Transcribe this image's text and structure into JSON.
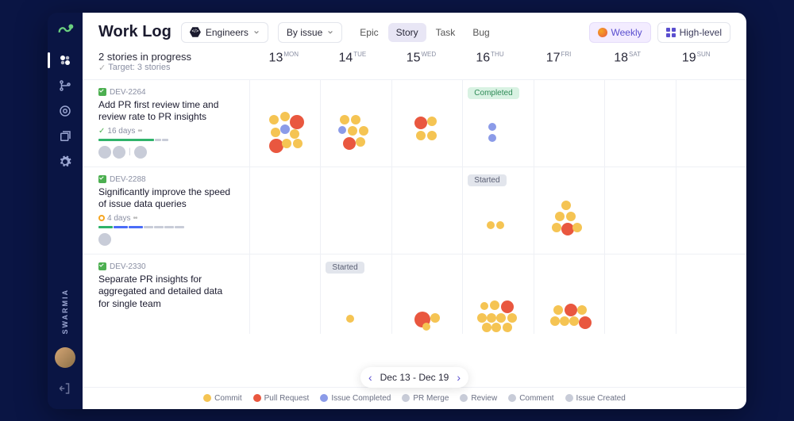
{
  "brand": "SWARMIA",
  "page_title": "Work Log",
  "team_dropdown": {
    "label": "Engineers"
  },
  "group_dropdown": {
    "label": "By issue"
  },
  "issue_tabs": [
    {
      "label": "Epic",
      "active": false
    },
    {
      "label": "Story",
      "active": true
    },
    {
      "label": "Task",
      "active": false
    },
    {
      "label": "Bug",
      "active": false
    }
  ],
  "view_chips": {
    "weekly": "Weekly",
    "highlevel": "High-level"
  },
  "progress": {
    "title": "2 stories in progress",
    "target": "Target: 3 stories"
  },
  "days": [
    {
      "num": "13",
      "name": "MON"
    },
    {
      "num": "14",
      "name": "TUE"
    },
    {
      "num": "15",
      "name": "WED"
    },
    {
      "num": "16",
      "name": "THU"
    },
    {
      "num": "17",
      "name": "FRI"
    },
    {
      "num": "18",
      "name": "SAT"
    },
    {
      "num": "19",
      "name": "SUN"
    }
  ],
  "range_label": "Dec 13 - Dec 19",
  "colors": {
    "commit": "#f5c453",
    "pull_request": "#e9573f",
    "issue_completed": "#8b9be8",
    "muted": "#c8ccd8",
    "badge_completed_bg": "#d9f2e3",
    "badge_completed_fg": "#2e8b57",
    "badge_started_bg": "#e2e5ec",
    "badge_started_fg": "#5a5f73"
  },
  "legend": [
    {
      "label": "Commit",
      "color": "#f5c453"
    },
    {
      "label": "Pull Request",
      "color": "#e9573f"
    },
    {
      "label": "Issue Completed",
      "color": "#8b9be8"
    },
    {
      "label": "PR Merge",
      "color": "#c8ccd8"
    },
    {
      "label": "Review",
      "color": "#c8ccd8"
    },
    {
      "label": "Comment",
      "color": "#c8ccd8"
    },
    {
      "label": "Issue Created",
      "color": "#c8ccd8"
    }
  ],
  "rows": [
    {
      "id": "DEV-2264",
      "title": "Add PR first review time and review rate to PR insights",
      "days_text": "16 days",
      "status_icon": "check",
      "avatars": 2,
      "extra_avatars": 1,
      "progress_segments": [
        {
          "w": 70,
          "c": "#2fb36a"
        },
        {
          "w": 8,
          "c": "#c8ccd8"
        },
        {
          "w": 8,
          "c": "#c8ccd8"
        }
      ],
      "cells": [
        {
          "badge": null,
          "dots": [
            {
              "x": 20,
              "y": 20,
              "r": 6,
              "c": "#f5c453"
            },
            {
              "x": 34,
              "y": 16,
              "r": 6,
              "c": "#f5c453"
            },
            {
              "x": 46,
              "y": 20,
              "r": 9,
              "c": "#e9573f"
            },
            {
              "x": 22,
              "y": 36,
              "r": 6,
              "c": "#f5c453"
            },
            {
              "x": 34,
              "y": 32,
              "r": 6,
              "c": "#8b9be8"
            },
            {
              "x": 46,
              "y": 38,
              "r": 6,
              "c": "#f5c453"
            },
            {
              "x": 20,
              "y": 50,
              "r": 9,
              "c": "#e9573f"
            },
            {
              "x": 36,
              "y": 50,
              "r": 6,
              "c": "#f5c453"
            },
            {
              "x": 50,
              "y": 50,
              "r": 6,
              "c": "#f5c453"
            }
          ]
        },
        {
          "badge": null,
          "dots": [
            {
              "x": 20,
              "y": 20,
              "r": 6,
              "c": "#f5c453"
            },
            {
              "x": 34,
              "y": 20,
              "r": 6,
              "c": "#f5c453"
            },
            {
              "x": 18,
              "y": 34,
              "r": 5,
              "c": "#8b9be8"
            },
            {
              "x": 30,
              "y": 34,
              "r": 6,
              "c": "#f5c453"
            },
            {
              "x": 44,
              "y": 34,
              "r": 6,
              "c": "#f5c453"
            },
            {
              "x": 24,
              "y": 48,
              "r": 8,
              "c": "#e9573f"
            },
            {
              "x": 40,
              "y": 48,
              "r": 6,
              "c": "#f5c453"
            }
          ]
        },
        {
          "badge": null,
          "dots": [
            {
              "x": 24,
              "y": 22,
              "r": 8,
              "c": "#e9573f"
            },
            {
              "x": 40,
              "y": 22,
              "r": 6,
              "c": "#f5c453"
            },
            {
              "x": 26,
              "y": 40,
              "r": 6,
              "c": "#f5c453"
            },
            {
              "x": 40,
              "y": 40,
              "r": 6,
              "c": "#f5c453"
            }
          ]
        },
        {
          "badge": "Completed",
          "badge_class": "completed",
          "dots": [
            {
              "x": 28,
              "y": 30,
              "r": 5,
              "c": "#8b9be8"
            },
            {
              "x": 28,
              "y": 44,
              "r": 5,
              "c": "#8b9be8"
            }
          ]
        },
        {
          "badge": null,
          "dots": []
        },
        {
          "badge": null,
          "dots": []
        },
        {
          "badge": null,
          "dots": []
        }
      ]
    },
    {
      "id": "DEV-2288",
      "title": "Significantly improve the speed of issue data queries",
      "days_text": "4 days",
      "status_icon": "pending",
      "avatars": 1,
      "extra_avatars": 0,
      "progress_segments": [
        {
          "w": 18,
          "c": "#2fb36a"
        },
        {
          "w": 18,
          "c": "#4a6cf7"
        },
        {
          "w": 18,
          "c": "#4a6cf7"
        },
        {
          "w": 12,
          "c": "#c8ccd8"
        },
        {
          "w": 12,
          "c": "#c8ccd8"
        },
        {
          "w": 12,
          "c": "#c8ccd8"
        },
        {
          "w": 12,
          "c": "#c8ccd8"
        }
      ],
      "cells": [
        {
          "badge": null,
          "dots": []
        },
        {
          "badge": null,
          "dots": []
        },
        {
          "badge": null,
          "dots": []
        },
        {
          "badge": "Started",
          "badge_class": "started",
          "dots": [
            {
              "x": 26,
              "y": 44,
              "r": 5,
              "c": "#f5c453"
            },
            {
              "x": 38,
              "y": 44,
              "r": 5,
              "c": "#f5c453"
            }
          ]
        },
        {
          "badge": null,
          "dots": [
            {
              "x": 30,
              "y": 18,
              "r": 6,
              "c": "#f5c453"
            },
            {
              "x": 22,
              "y": 32,
              "r": 6,
              "c": "#f5c453"
            },
            {
              "x": 36,
              "y": 32,
              "r": 6,
              "c": "#f5c453"
            },
            {
              "x": 18,
              "y": 46,
              "r": 6,
              "c": "#f5c453"
            },
            {
              "x": 30,
              "y": 46,
              "r": 8,
              "c": "#e9573f"
            },
            {
              "x": 44,
              "y": 46,
              "r": 6,
              "c": "#f5c453"
            }
          ]
        },
        {
          "badge": null,
          "dots": []
        },
        {
          "badge": null,
          "dots": []
        }
      ]
    },
    {
      "id": "DEV-2330",
      "title": "Separate PR insights for aggregated and detailed data for single team",
      "days_text": "",
      "status_icon": "",
      "avatars": 0,
      "extra_avatars": 0,
      "progress_segments": [],
      "cells": [
        {
          "badge": null,
          "dots": []
        },
        {
          "badge": "Started",
          "badge_class": "started",
          "dots": [
            {
              "x": 28,
              "y": 52,
              "r": 5,
              "c": "#f5c453"
            }
          ]
        },
        {
          "badge": null,
          "dots": [
            {
              "x": 24,
              "y": 48,
              "r": 10,
              "c": "#e9573f"
            },
            {
              "x": 44,
              "y": 50,
              "r": 6,
              "c": "#f5c453"
            },
            {
              "x": 34,
              "y": 62,
              "r": 5,
              "c": "#f5c453"
            }
          ]
        },
        {
          "badge": null,
          "dots": [
            {
              "x": 18,
              "y": 36,
              "r": 5,
              "c": "#f5c453"
            },
            {
              "x": 30,
              "y": 34,
              "r": 6,
              "c": "#f5c453"
            },
            {
              "x": 44,
              "y": 34,
              "r": 8,
              "c": "#e9573f"
            },
            {
              "x": 14,
              "y": 50,
              "r": 6,
              "c": "#f5c453"
            },
            {
              "x": 26,
              "y": 50,
              "r": 6,
              "c": "#f5c453"
            },
            {
              "x": 38,
              "y": 50,
              "r": 6,
              "c": "#f5c453"
            },
            {
              "x": 52,
              "y": 50,
              "r": 6,
              "c": "#f5c453"
            },
            {
              "x": 20,
              "y": 62,
              "r": 6,
              "c": "#f5c453"
            },
            {
              "x": 32,
              "y": 62,
              "r": 6,
              "c": "#f5c453"
            },
            {
              "x": 46,
              "y": 62,
              "r": 6,
              "c": "#f5c453"
            }
          ]
        },
        {
          "badge": null,
          "dots": [
            {
              "x": 20,
              "y": 40,
              "r": 6,
              "c": "#f5c453"
            },
            {
              "x": 34,
              "y": 38,
              "r": 8,
              "c": "#e9573f"
            },
            {
              "x": 50,
              "y": 40,
              "r": 6,
              "c": "#f5c453"
            },
            {
              "x": 16,
              "y": 54,
              "r": 6,
              "c": "#f5c453"
            },
            {
              "x": 28,
              "y": 54,
              "r": 6,
              "c": "#f5c453"
            },
            {
              "x": 40,
              "y": 54,
              "r": 6,
              "c": "#f5c453"
            },
            {
              "x": 52,
              "y": 54,
              "r": 8,
              "c": "#e9573f"
            }
          ]
        },
        {
          "badge": null,
          "dots": []
        },
        {
          "badge": null,
          "dots": []
        }
      ]
    }
  ]
}
